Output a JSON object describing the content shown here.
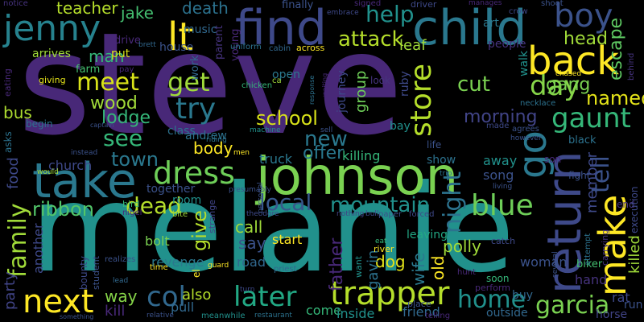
{
  "background": "#000000",
  "words": [
    {
      "text": "steve",
      "color": "#482878"
    },
    {
      "text": "melanie",
      "color": "#21918c"
    },
    {
      "text": "johnson",
      "color": "#7ad151"
    },
    {
      "text": "find",
      "color": "#3e4989"
    },
    {
      "text": "child",
      "color": "#2a788e"
    },
    {
      "text": "take",
      "color": "#2a788e"
    },
    {
      "text": "back",
      "color": "#fde725"
    },
    {
      "text": "boy",
      "color": "#3b528b"
    },
    {
      "text": "jenny",
      "color": "#26828e"
    },
    {
      "text": "return",
      "color": "#3e4989"
    },
    {
      "text": "make",
      "color": "#fde725"
    },
    {
      "text": "trapper",
      "color": "#b5de2b"
    },
    {
      "text": "next",
      "color": "#fde725"
    },
    {
      "text": "dress",
      "color": "#6ece58"
    },
    {
      "text": "meet",
      "color": "#d8e219"
    },
    {
      "text": "go",
      "color": "#2a788e"
    },
    {
      "text": "day",
      "color": "#86d549"
    },
    {
      "text": "lt",
      "color": "#fde725"
    },
    {
      "text": "help",
      "color": "#21918c"
    },
    {
      "text": "store",
      "color": "#b5de2b"
    },
    {
      "text": "gaunt",
      "color": "#35b779"
    },
    {
      "text": "get",
      "color": "#9fda3a"
    },
    {
      "text": "blue",
      "color": "#6ece58"
    },
    {
      "text": "home",
      "color": "#21918c"
    },
    {
      "text": "later",
      "color": "#22a884"
    },
    {
      "text": "try",
      "color": "#2a788e"
    },
    {
      "text": "see",
      "color": "#35b779"
    },
    {
      "text": "col",
      "color": "#31688e"
    },
    {
      "text": "dead",
      "color": "#b5de2b"
    },
    {
      "text": "mountain",
      "color": "#21918c"
    },
    {
      "text": "night",
      "color": "#2c728e"
    },
    {
      "text": "tell",
      "color": "#3b528b"
    },
    {
      "text": "garcia",
      "color": "#7ad151"
    },
    {
      "text": "family",
      "color": "#a0da39"
    },
    {
      "text": "school",
      "color": "#d8e219"
    },
    {
      "text": "wood",
      "color": "#a0da39"
    },
    {
      "text": "local",
      "color": "#38588c"
    },
    {
      "text": "attack",
      "color": "#b5de2b"
    },
    {
      "text": "cut",
      "color": "#7ad151"
    },
    {
      "text": "morning",
      "color": "#414487"
    },
    {
      "text": "named",
      "color": "#e5e419"
    },
    {
      "text": "ribbon",
      "color": "#52c569"
    },
    {
      "text": "town",
      "color": "#2a788e"
    },
    {
      "text": "give",
      "color": "#b5de2b"
    },
    {
      "text": "new",
      "color": "#2a788e"
    },
    {
      "text": "offer",
      "color": "#2a788e"
    },
    {
      "text": "lodge",
      "color": "#35b779"
    },
    {
      "text": "gang",
      "color": "#7ad151"
    },
    {
      "text": "head",
      "color": "#a0da39"
    },
    {
      "text": "escape",
      "color": "#5ec962"
    },
    {
      "text": "teacher",
      "color": "#b5de2b"
    },
    {
      "text": "jake",
      "color": "#44bf70"
    },
    {
      "text": "death",
      "color": "#2c728e"
    },
    {
      "text": "body",
      "color": "#fde725"
    },
    {
      "text": "way",
      "color": "#86d549"
    },
    {
      "text": "call",
      "color": "#9fda3a"
    },
    {
      "text": "say",
      "color": "#3b528b"
    },
    {
      "text": "father",
      "color": "#482878"
    },
    {
      "text": "wife",
      "color": "#2a788e"
    },
    {
      "text": "old",
      "color": "#fde725"
    },
    {
      "text": "dog",
      "color": "#e5e419"
    },
    {
      "text": "polly",
      "color": "#a0da39"
    },
    {
      "text": "bus",
      "color": "#addc30"
    },
    {
      "text": "food",
      "color": "#3e4989"
    },
    {
      "text": "party",
      "color": "#414487"
    },
    {
      "text": "man",
      "color": "#35b779"
    },
    {
      "text": "leaf",
      "color": "#a0da39"
    },
    {
      "text": "group",
      "color": "#6ece58"
    },
    {
      "text": "killing",
      "color": "#35b779"
    },
    {
      "text": "member",
      "color": "#3e4989"
    },
    {
      "text": "killed",
      "color": "#a0da39"
    },
    {
      "text": "also",
      "color": "#b5de2b"
    },
    {
      "text": "start",
      "color": "#fde725"
    },
    {
      "text": "road",
      "color": "#31688e"
    },
    {
      "text": "another",
      "color": "#3e4989"
    },
    {
      "text": "kill",
      "color": "#482878"
    },
    {
      "text": "pull",
      "color": "#31688e"
    },
    {
      "text": "come",
      "color": "#35b779"
    },
    {
      "text": "inside",
      "color": "#21918c"
    },
    {
      "text": "friend",
      "color": "#31688e"
    },
    {
      "text": "hand",
      "color": "#46337e"
    },
    {
      "text": "rat",
      "color": "#3e4989"
    },
    {
      "text": "woman",
      "color": "#3b528b"
    },
    {
      "text": "leaving",
      "color": "#22a884"
    },
    {
      "text": "gavin",
      "color": "#2c728e"
    },
    {
      "text": "song",
      "color": "#3b528b"
    },
    {
      "text": "away",
      "color": "#21918c"
    },
    {
      "text": "truck",
      "color": "#2a788e"
    },
    {
      "text": "show",
      "color": "#2c728e"
    },
    {
      "text": "revenge",
      "color": "#2a788e"
    },
    {
      "text": "room",
      "color": "#21918c"
    },
    {
      "text": "bolt",
      "color": "#7ad151"
    },
    {
      "text": "church",
      "color": "#3e4989"
    },
    {
      "text": "together",
      "color": "#3b528b"
    },
    {
      "text": "class",
      "color": "#2c728e"
    },
    {
      "text": "andrew",
      "color": "#2c728e"
    },
    {
      "text": "open",
      "color": "#2a788e"
    },
    {
      "text": "ruby",
      "color": "#3e4989"
    },
    {
      "text": "journey",
      "color": "#3e4989"
    },
    {
      "text": "look",
      "color": "#46337e"
    },
    {
      "text": "house",
      "color": "#3b528b"
    },
    {
      "text": "work",
      "color": "#31688e"
    },
    {
      "text": "parent",
      "color": "#46337e"
    },
    {
      "text": "young",
      "color": "#482878"
    },
    {
      "text": "music",
      "color": "#31688e"
    },
    {
      "text": "farm",
      "color": "#44bf70"
    },
    {
      "text": "put",
      "color": "#d8e219"
    },
    {
      "text": "arrives",
      "color": "#a0da39"
    },
    {
      "text": "drive",
      "color": "#482878"
    },
    {
      "text": "people",
      "color": "#46337e"
    },
    {
      "text": "art",
      "color": "#2a788e"
    },
    {
      "text": "walk",
      "color": "#21918c"
    },
    {
      "text": "bay",
      "color": "#21918c"
    },
    {
      "text": "life",
      "color": "#3b528b"
    },
    {
      "text": "black",
      "color": "#2c728e"
    },
    {
      "text": "son",
      "color": "#482878"
    },
    {
      "text": "end",
      "color": "#46337e"
    },
    {
      "text": "execution",
      "color": "#3e4989"
    },
    {
      "text": "fight",
      "color": "#3b528b"
    },
    {
      "text": "carrying",
      "color": "#46337e"
    },
    {
      "text": "biker",
      "color": "#44bf70"
    },
    {
      "text": "soon",
      "color": "#35b779"
    },
    {
      "text": "perform",
      "color": "#482878"
    },
    {
      "text": "buy",
      "color": "#31688e"
    },
    {
      "text": "outside",
      "color": "#31688e"
    },
    {
      "text": "horse",
      "color": "#414487"
    },
    {
      "text": "run",
      "color": "#3b528b"
    },
    {
      "text": "across",
      "color": "#fde725"
    },
    {
      "text": "uniform",
      "color": "#2c728e"
    },
    {
      "text": "cabin",
      "color": "#31688e"
    },
    {
      "text": "chicken",
      "color": "#35b779"
    },
    {
      "text": "ca",
      "color": "#a0da39"
    },
    {
      "text": "finally",
      "color": "#3b528b"
    },
    {
      "text": "signed",
      "color": "#482878"
    },
    {
      "text": "driver",
      "color": "#3e4989"
    },
    {
      "text": "manages",
      "color": "#482878"
    },
    {
      "text": "crow",
      "color": "#3e4989"
    },
    {
      "text": "shoot",
      "color": "#3b528b"
    },
    {
      "text": "embrace",
      "color": "#3e4989"
    },
    {
      "text": "notice",
      "color": "#46337e"
    },
    {
      "text": "brett",
      "color": "#31688e"
    },
    {
      "text": "pay",
      "color": "#482878"
    },
    {
      "text": "giving",
      "color": "#e5e419"
    },
    {
      "text": "eating",
      "color": "#482878"
    },
    {
      "text": "asks",
      "color": "#2c728e"
    },
    {
      "text": "begin",
      "color": "#2c728e"
    },
    {
      "text": "captain",
      "color": "#3b528b"
    },
    {
      "text": "instead",
      "color": "#3b528b"
    },
    {
      "text": "would",
      "color": "#a0da39"
    },
    {
      "text": "bird",
      "color": "#35b779"
    },
    {
      "text": "nigel",
      "color": "#482878"
    },
    {
      "text": "bite",
      "color": "#a0da39"
    },
    {
      "text": "strange",
      "color": "#414487"
    },
    {
      "text": "presumably",
      "color": "#3b528b"
    },
    {
      "text": "theodore",
      "color": "#3e4989"
    },
    {
      "text": "nothing",
      "color": "#414487"
    },
    {
      "text": "bull",
      "color": "#3e4989"
    },
    {
      "text": "paper",
      "color": "#3b528b"
    },
    {
      "text": "forced",
      "color": "#3e4989"
    },
    {
      "text": "eat",
      "color": "#35b779"
    },
    {
      "text": "river",
      "color": "#fde725"
    },
    {
      "text": "want",
      "color": "#21918c"
    },
    {
      "text": "catch",
      "color": "#3e4989"
    },
    {
      "text": "hunt",
      "color": "#482878"
    },
    {
      "text": "place",
      "color": "#3b528b"
    },
    {
      "text": "telling",
      "color": "#482878"
    },
    {
      "text": "sell",
      "color": "#3b528b"
    },
    {
      "text": "machine",
      "color": "#21918c"
    },
    {
      "text": "riding",
      "color": "#2c728e"
    },
    {
      "text": "men",
      "color": "#fde725"
    },
    {
      "text": "personal",
      "color": "#3b528b"
    },
    {
      "text": "trip",
      "color": "#2c728e"
    },
    {
      "text": "living",
      "color": "#3b528b"
    },
    {
      "text": "however",
      "color": "#3b528b"
    },
    {
      "text": "agrees",
      "color": "#3b528b"
    },
    {
      "text": "made",
      "color": "#3e4989"
    },
    {
      "text": "necklace",
      "color": "#2c728e"
    },
    {
      "text": "chased",
      "color": "#fde725"
    },
    {
      "text": "behind",
      "color": "#46337e"
    },
    {
      "text": "attempt",
      "color": "#2c728e"
    },
    {
      "text": "several",
      "color": "#3b528b"
    },
    {
      "text": "realizes",
      "color": "#3b528b"
    },
    {
      "text": "bounty",
      "color": "#3e4989"
    },
    {
      "text": "student",
      "color": "#3b528b"
    },
    {
      "text": "lead",
      "color": "#31688e"
    },
    {
      "text": "time",
      "color": "#fde725"
    },
    {
      "text": "guard",
      "color": "#fde725"
    },
    {
      "text": "priest",
      "color": "#31688e"
    },
    {
      "text": "turn",
      "color": "#3e4989"
    },
    {
      "text": "el",
      "color": "#fde725"
    },
    {
      "text": "relative",
      "color": "#3b528b"
    },
    {
      "text": "meanwhile",
      "color": "#21918c"
    },
    {
      "text": "something",
      "color": "#3b528b"
    },
    {
      "text": "restaurant",
      "color": "#2c728e"
    },
    {
      "text": "waiting",
      "color": "#482878"
    },
    {
      "text": "response",
      "color": "#2c728e"
    }
  ]
}
